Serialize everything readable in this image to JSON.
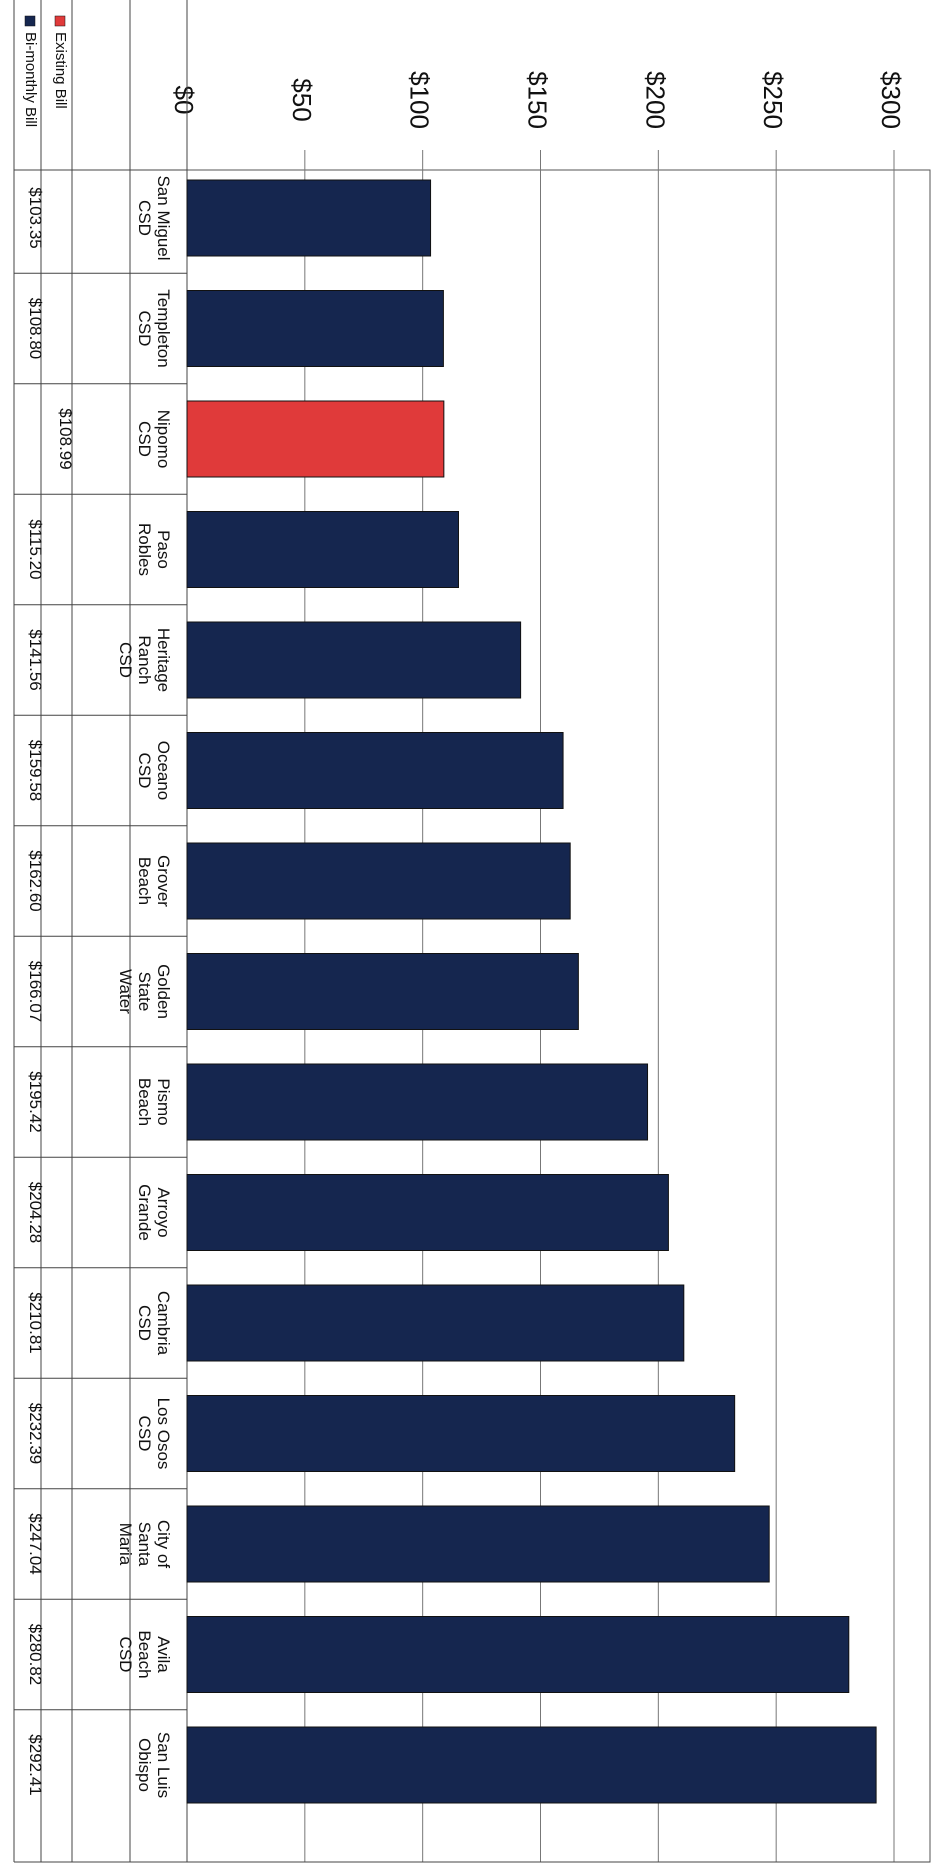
{
  "chart_data": {
    "type": "bar",
    "orientation": "rotated-90-clockwise",
    "categories": [
      "San Miguel CSD",
      "Templeton CSD",
      "Nipomo CSD",
      "Paso Robles",
      "Heritage Ranch CSD",
      "Oceano CSD",
      "Grover Beach",
      "Golden State Water",
      "Pismo Beach",
      "Arroyo Grande",
      "Cambria CSD",
      "Los Osos CSD",
      "City of Santa Maria",
      "Avila Beach CSD",
      "San Luis Obispo"
    ],
    "category_lines": [
      [
        "San Miguel",
        "CSD"
      ],
      [
        "Templeton",
        "CSD"
      ],
      [
        "Nipomo",
        "CSD"
      ],
      [
        "Paso",
        "Robles"
      ],
      [
        "Heritage",
        "Ranch",
        "CSD"
      ],
      [
        "Oceano",
        "CSD"
      ],
      [
        "Grover",
        "Beach"
      ],
      [
        "Golden",
        "State",
        "Water"
      ],
      [
        "Pismo",
        "Beach"
      ],
      [
        "Arroyo",
        "Grande"
      ],
      [
        "Cambria",
        "CSD"
      ],
      [
        "Los Osos",
        "CSD"
      ],
      [
        "City of",
        "Santa",
        "Maria"
      ],
      [
        "Avila",
        "Beach",
        "CSD"
      ],
      [
        "San Luis",
        "Obispo"
      ]
    ],
    "series": [
      {
        "name": "Existing Bill",
        "color": "#e03a3a",
        "values": [
          null,
          null,
          108.99,
          null,
          null,
          null,
          null,
          null,
          null,
          null,
          null,
          null,
          null,
          null,
          null
        ],
        "labels": [
          "",
          "",
          "$108.99",
          "",
          "",
          "",
          "",
          "",
          "",
          "",
          "",
          "",
          "",
          "",
          ""
        ]
      },
      {
        "name": "Bi-monthly Bill",
        "color": "#15264f",
        "values": [
          103.35,
          108.8,
          null,
          115.2,
          141.56,
          159.58,
          162.6,
          166.07,
          195.42,
          204.28,
          210.81,
          232.39,
          247.04,
          280.82,
          292.41
        ],
        "labels": [
          "$103.35",
          "$108.80",
          "",
          "$115.20",
          "$141.56",
          "$159.58",
          "$162.60",
          "$166.07",
          "$195.42",
          "$204.28",
          "$210.81",
          "$232.39",
          "$247.04",
          "$280.82",
          "$292.41"
        ]
      }
    ],
    "ylim": [
      0,
      300
    ],
    "yticks": [
      0,
      50,
      100,
      150,
      200,
      250,
      300
    ],
    "ytick_labels": [
      "$0",
      "$50",
      "$100",
      "$150",
      "$200",
      "$250",
      "$300"
    ],
    "grid": true,
    "legend": "data-table",
    "title": "",
    "xlabel": "",
    "ylabel": ""
  }
}
